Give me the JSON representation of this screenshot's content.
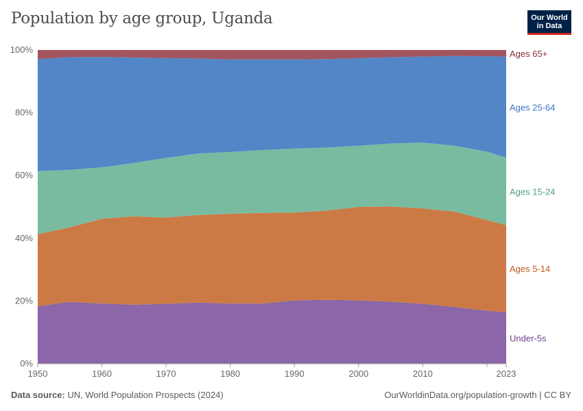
{
  "header": {
    "title": "Population by age group, Uganda",
    "logo_text": "Our World in Data"
  },
  "footer": {
    "source_label": "Data source:",
    "source": "UN, World Population Prospects (2024)",
    "link": "OurWorldinData.org/population-growth | CC BY"
  },
  "chart_data": {
    "type": "area",
    "stacked": true,
    "title": "Population by age group, Uganda",
    "xlim": [
      1950,
      2023
    ],
    "ylim": [
      0,
      100
    ],
    "y_unit": "%",
    "y_ticks": [
      "0%",
      "20%",
      "40%",
      "60%",
      "80%",
      "100%"
    ],
    "y_tick_values": [
      0,
      20,
      40,
      60,
      80,
      100
    ],
    "x_ticks": [
      "1950",
      "1960",
      "1970",
      "1980",
      "1990",
      "2000",
      "2010",
      "2023"
    ],
    "x_tick_values": [
      1950,
      1960,
      1970,
      1980,
      1990,
      2000,
      2010,
      2023
    ],
    "grid": "horizontal dashed",
    "legend": "right, inline labels",
    "x": [
      1950,
      1955,
      1960,
      1965,
      1970,
      1975,
      1980,
      1985,
      1990,
      1995,
      2000,
      2005,
      2010,
      2015,
      2020,
      2023
    ],
    "series": [
      {
        "name": "Under-5s",
        "color": "#8b66a8",
        "label_color": "#6d3e91",
        "values": [
          18.3,
          19.7,
          19.2,
          18.8,
          19.1,
          19.5,
          19.2,
          19.2,
          20.2,
          20.4,
          20.2,
          19.8,
          19.1,
          18.1,
          16.9,
          16.4
        ]
      },
      {
        "name": "Ages 5-14",
        "color": "#cc7a45",
        "label_color": "#c05917",
        "values": [
          23.0,
          23.8,
          27.0,
          28.2,
          27.5,
          27.9,
          28.6,
          28.9,
          28.0,
          28.4,
          29.8,
          30.3,
          30.4,
          30.4,
          28.9,
          27.8
        ]
      },
      {
        "name": "Ages 15-24",
        "color": "#79bba0",
        "label_color": "#4e9f7f",
        "values": [
          20.1,
          18.3,
          16.4,
          17.0,
          19.0,
          19.6,
          19.7,
          20.0,
          20.4,
          20.1,
          19.5,
          20.1,
          21.0,
          21.0,
          21.8,
          21.5
        ]
      },
      {
        "name": "Ages 25-64",
        "color": "#5286c6",
        "label_color": "#3c75c2",
        "values": [
          35.7,
          35.9,
          35.2,
          33.6,
          31.8,
          30.3,
          29.5,
          28.9,
          28.4,
          28.2,
          27.9,
          27.5,
          27.4,
          28.6,
          30.4,
          32.2
        ]
      },
      {
        "name": "Ages 65+",
        "color": "#a2555f",
        "label_color": "#883039",
        "values": [
          2.9,
          2.3,
          2.2,
          2.4,
          2.6,
          2.7,
          3.0,
          3.0,
          3.0,
          2.9,
          2.6,
          2.3,
          2.1,
          1.9,
          2.0,
          2.1
        ]
      }
    ]
  }
}
